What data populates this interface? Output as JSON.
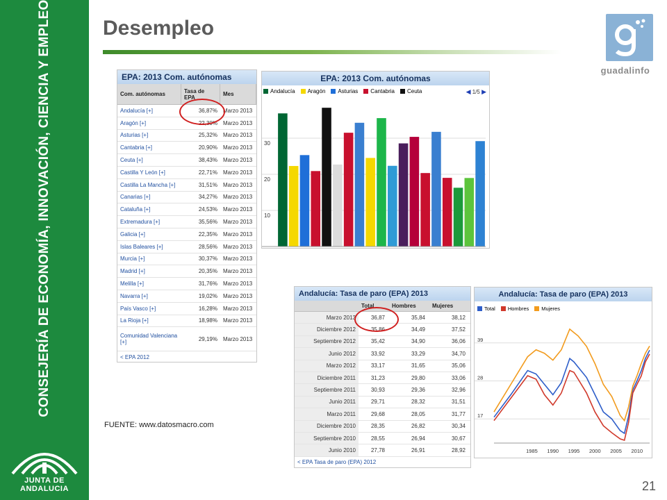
{
  "sidebar": {
    "vertical_title": "CONSEJERÍA DE ECONOMÍA, INNOVACIÓN, CIENCIA Y EMPLEO",
    "org_label": "JUNTA DE ANDALUCIA"
  },
  "slide": {
    "title": "Desempleo",
    "number": "21",
    "source": "FUENTE: www.datosmacro.com",
    "logo_text": "guadalinfo"
  },
  "epa_table": {
    "title": "EPA: 2013 Com. autónomas",
    "headers": [
      "Com. autónomas",
      "Tasa de EPA",
      "Mes"
    ],
    "rows": [
      {
        "region": "Andalucía [+]",
        "rate": "36,87%",
        "month": "Marzo 2013"
      },
      {
        "region": "Aragón [+]",
        "rate": "22,30%",
        "month": "Marzo 2013"
      },
      {
        "region": "Asturias [+]",
        "rate": "25,32%",
        "month": "Marzo 2013"
      },
      {
        "region": "Cantabria [+]",
        "rate": "20,90%",
        "month": "Marzo 2013"
      },
      {
        "region": "Ceuta [+]",
        "rate": "38,43%",
        "month": "Marzo 2013"
      },
      {
        "region": "Castilla Y León [+]",
        "rate": "22,71%",
        "month": "Marzo 2013"
      },
      {
        "region": "Castilla La Mancha [+]",
        "rate": "31,51%",
        "month": "Marzo 2013"
      },
      {
        "region": "Canarias [+]",
        "rate": "34,27%",
        "month": "Marzo 2013"
      },
      {
        "region": "Cataluña [+]",
        "rate": "24,53%",
        "month": "Marzo 2013"
      },
      {
        "region": "Extremadura [+]",
        "rate": "35,56%",
        "month": "Marzo 2013"
      },
      {
        "region": "Galicia [+]",
        "rate": "22,35%",
        "month": "Marzo 2013"
      },
      {
        "region": "Islas Baleares [+]",
        "rate": "28,56%",
        "month": "Marzo 2013"
      },
      {
        "region": "Murcia [+]",
        "rate": "30,37%",
        "month": "Marzo 2013"
      },
      {
        "region": "Madrid [+]",
        "rate": "20,35%",
        "month": "Marzo 2013"
      },
      {
        "region": "Melilla [+]",
        "rate": "31,76%",
        "month": "Marzo 2013"
      },
      {
        "region": "Navarra [+]",
        "rate": "19,02%",
        "month": "Marzo 2013"
      },
      {
        "region": "País Vasco [+]",
        "rate": "16,28%",
        "month": "Marzo 2013"
      },
      {
        "region": "La Rioja [+]",
        "rate": "18,98%",
        "month": "Marzo 2013"
      },
      {
        "region": "Comunidad Valenciana [+]",
        "rate": "29,19%",
        "month": "Marzo 2013"
      }
    ],
    "footer_link": "< EPA 2012"
  },
  "andalucia_table": {
    "title": "Andalucía: Tasa de paro (EPA) 2013",
    "headers": [
      "",
      "Total",
      "Hombres",
      "Mujeres"
    ],
    "rows": [
      {
        "period": "Marzo 2013",
        "total": "36,87",
        "men": "35,84",
        "women": "38,12"
      },
      {
        "period": "Diciembre 2012",
        "total": "35,86",
        "men": "34,49",
        "women": "37,52"
      },
      {
        "period": "Septiembre 2012",
        "total": "35,42",
        "men": "34,90",
        "women": "36,06"
      },
      {
        "period": "Junio 2012",
        "total": "33,92",
        "men": "33,29",
        "women": "34,70"
      },
      {
        "period": "Marzo 2012",
        "total": "33,17",
        "men": "31,65",
        "women": "35,06"
      },
      {
        "period": "Diciembre 2011",
        "total": "31,23",
        "men": "29,80",
        "women": "33,06"
      },
      {
        "period": "Septiembre 2011",
        "total": "30,93",
        "men": "29,36",
        "women": "32,96"
      },
      {
        "period": "Junio 2011",
        "total": "29,71",
        "men": "28,32",
        "women": "31,51"
      },
      {
        "period": "Marzo 2011",
        "total": "29,68",
        "men": "28,05",
        "women": "31,77"
      },
      {
        "period": "Diciembre 2010",
        "total": "28,35",
        "men": "26,82",
        "women": "30,34"
      },
      {
        "period": "Septiembre 2010",
        "total": "28,55",
        "men": "26,94",
        "women": "30,67"
      },
      {
        "period": "Junio 2010",
        "total": "27,78",
        "men": "26,91",
        "women": "28,92"
      }
    ],
    "footer_link": "< EPA Tasa de paro (EPA) 2012"
  },
  "chart_data": [
    {
      "type": "bar",
      "title": "EPA: 2013 Com. autónomas",
      "legend": [
        "Andalucía",
        "Aragón",
        "Asturias",
        "Cantabria",
        "Ceuta"
      ],
      "pager": "1/5",
      "categories": [
        "Andalucía",
        "Aragón",
        "Asturias",
        "Cantabria",
        "Ceuta",
        "Castilla Y León",
        "Castilla La Mancha",
        "Canarias",
        "Cataluña",
        "Extremadura",
        "Galicia",
        "Islas Baleares",
        "Murcia",
        "Madrid",
        "Melilla",
        "Navarra",
        "País Vasco",
        "La Rioja",
        "Comunidad Valenciana"
      ],
      "values": [
        36.87,
        22.3,
        25.32,
        20.9,
        38.43,
        22.71,
        31.51,
        34.27,
        24.53,
        35.56,
        22.35,
        28.56,
        30.37,
        20.35,
        31.76,
        19.02,
        16.28,
        18.98,
        29.19
      ],
      "colors": [
        "#006633",
        "#f5d800",
        "#1f6fd8",
        "#c8102e",
        "#111111",
        "#dcdcdc",
        "#c8102e",
        "#3a7fd0",
        "#f5d800",
        "#1db64a",
        "#2f9bd6",
        "#4a1e5c",
        "#b5003a",
        "#c8102e",
        "#3a7fd0",
        "#c8102e",
        "#1b9a3a",
        "#5cc43c",
        "#2d82d3"
      ],
      "yticks": [
        10,
        20,
        30
      ],
      "ylim": [
        0,
        40
      ]
    },
    {
      "type": "line",
      "title": "Andalucía: Tasa de paro (EPA) 2013",
      "series": [
        {
          "name": "Total",
          "color": "#2e5ec9",
          "x": [
            1976,
            1980,
            1984,
            1986,
            1988,
            1990,
            1992,
            1994,
            1995,
            1996,
            1998,
            2000,
            2002,
            2004,
            2006,
            2007,
            2008,
            2009,
            2010,
            2011,
            2012,
            2013
          ],
          "values": [
            17.5,
            24,
            31,
            30,
            27,
            24,
            27.5,
            34.5,
            33.5,
            32,
            29,
            24,
            19,
            17,
            13.6,
            12.8,
            17.8,
            25.4,
            28,
            30.9,
            34.5,
            36.9
          ]
        },
        {
          "name": "Hombres",
          "color": "#d0392b",
          "x": [
            1976,
            1980,
            1984,
            1986,
            1988,
            1990,
            1992,
            1994,
            1995,
            1996,
            1998,
            2000,
            2002,
            2004,
            2006,
            2007,
            2008,
            2009,
            2010,
            2011,
            2012,
            2013
          ],
          "values": [
            16.5,
            23,
            29.5,
            28.5,
            24,
            21,
            24.5,
            31,
            30.5,
            28.5,
            24.5,
            19,
            15,
            13,
            11.2,
            10.8,
            16,
            24.5,
            27,
            29.4,
            33.5,
            35.8
          ]
        },
        {
          "name": "Mujeres",
          "color": "#f29b1d",
          "x": [
            1976,
            1980,
            1984,
            1986,
            1988,
            1990,
            1992,
            1994,
            1995,
            1996,
            1998,
            2000,
            2002,
            2004,
            2006,
            2007,
            2008,
            2009,
            2010,
            2011,
            2012,
            2013
          ],
          "values": [
            19,
            27,
            35,
            37,
            36,
            34,
            37,
            43,
            42,
            41,
            38,
            33,
            27,
            23.5,
            18,
            16.5,
            20.5,
            26.5,
            29.5,
            33,
            36,
            38.1
          ]
        }
      ],
      "yticks": [
        17,
        28,
        39
      ],
      "xticks": [
        "1985",
        "1990",
        "1995",
        "2000",
        "2005",
        "2010"
      ],
      "xlim": [
        1976,
        2013
      ],
      "ylim": [
        10,
        47
      ]
    }
  ]
}
